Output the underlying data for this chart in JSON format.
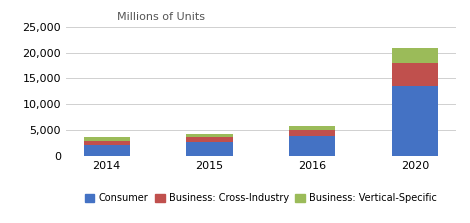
{
  "categories": [
    "2014",
    "2015",
    "2016",
    "2020"
  ],
  "consumer": [
    2200,
    2700,
    3900,
    13600
  ],
  "cross_industry": [
    800,
    900,
    1100,
    4400
  ],
  "vertical_specific": [
    700,
    700,
    900,
    2800
  ],
  "colors": {
    "consumer": "#4472c4",
    "cross_industry": "#c0504d",
    "vertical_specific": "#9bbb59"
  },
  "ylabel": "Millions of Units",
  "ylim": [
    0,
    25000
  ],
  "yticks": [
    0,
    5000,
    10000,
    15000,
    20000,
    25000
  ],
  "legend_labels": [
    "Consumer",
    "Business: Cross-Industry",
    "Business: Vertical-Specific"
  ],
  "background_color": "#ffffff",
  "grid_color": "#d0d0d0"
}
